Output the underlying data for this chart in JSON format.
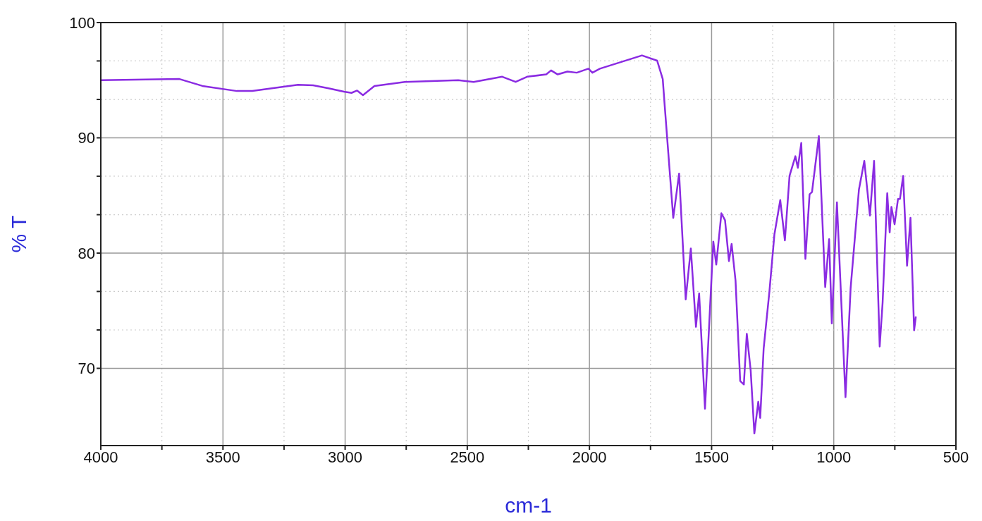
{
  "chart_data": {
    "type": "line",
    "xlabel": "cm-1",
    "ylabel": "% T",
    "xlim": [
      4000,
      500
    ],
    "ylim": [
      63.3,
      100
    ],
    "xticks": [
      4000,
      {
        "value": 3750,
        "label": null
      },
      3500,
      {
        "value": 3250,
        "label": null
      },
      3000,
      {
        "value": 2750,
        "label": null
      },
      2500,
      {
        "value": 2250,
        "label": null
      },
      2000,
      {
        "value": 1750,
        "label": null
      },
      1500,
      {
        "value": 1250,
        "label": null
      },
      1000,
      {
        "value": 750,
        "label": null
      },
      500
    ],
    "yticks": [
      70,
      {
        "value": 73.33,
        "label": null
      },
      {
        "value": 76.67,
        "label": null
      },
      80,
      {
        "value": 83.33,
        "label": null
      },
      {
        "value": 86.67,
        "label": null
      },
      90,
      {
        "value": 93.33,
        "label": null
      },
      {
        "value": 96.67,
        "label": null
      },
      100
    ],
    "grid": true,
    "marker": "none",
    "line_style": "solid",
    "series": [
      {
        "color": "#8a2be2",
        "x": [
          4000,
          3678,
          3584,
          3443,
          3380,
          3193,
          3131,
          3068,
          3005,
          2974,
          2951,
          2927,
          2880,
          2756,
          2537,
          2474,
          2357,
          2302,
          2255,
          2177,
          2157,
          2130,
          2090,
          2052,
          2004,
          1988,
          1957,
          1785,
          1723,
          1700,
          1692,
          1657,
          1633,
          1606,
          1585,
          1564,
          1551,
          1527,
          1493,
          1481,
          1460,
          1445,
          1429,
          1418,
          1402,
          1383,
          1368,
          1356,
          1340,
          1325,
          1309,
          1301,
          1287,
          1263,
          1243,
          1219,
          1200,
          1181,
          1157,
          1147,
          1133,
          1116,
          1099,
          1089,
          1061,
          1035,
          1019,
          1008,
          987,
          952,
          931,
          897,
          875,
          852,
          835,
          812,
          800,
          781,
          771,
          764,
          751,
          737,
          729,
          716,
          700,
          686,
          671,
          664
        ],
        "values": [
          95.0,
          95.1,
          94.5,
          94.06,
          94.06,
          94.6,
          94.55,
          94.3,
          94.0,
          93.9,
          94.1,
          93.7,
          94.5,
          94.85,
          95.0,
          94.85,
          95.3,
          94.85,
          95.3,
          95.5,
          95.85,
          95.5,
          95.75,
          95.65,
          96.0,
          95.65,
          96.0,
          97.15,
          96.7,
          95.1,
          92.8,
          83.05,
          86.9,
          75.98,
          80.4,
          73.6,
          76.5,
          66.5,
          81.0,
          79.0,
          83.45,
          82.85,
          79.3,
          80.8,
          77.6,
          68.9,
          68.6,
          73.0,
          69.8,
          64.35,
          67.1,
          65.7,
          71.7,
          76.75,
          81.6,
          84.6,
          81.1,
          86.7,
          88.4,
          87.4,
          89.55,
          79.5,
          85.1,
          85.3,
          90.15,
          77.05,
          81.2,
          73.9,
          84.4,
          67.5,
          76.95,
          85.5,
          88.0,
          83.25,
          88.0,
          71.9,
          75.7,
          85.2,
          81.8,
          84.0,
          82.5,
          84.7,
          84.7,
          86.7,
          78.9,
          83.05,
          73.3,
          74.5
        ]
      }
    ]
  }
}
